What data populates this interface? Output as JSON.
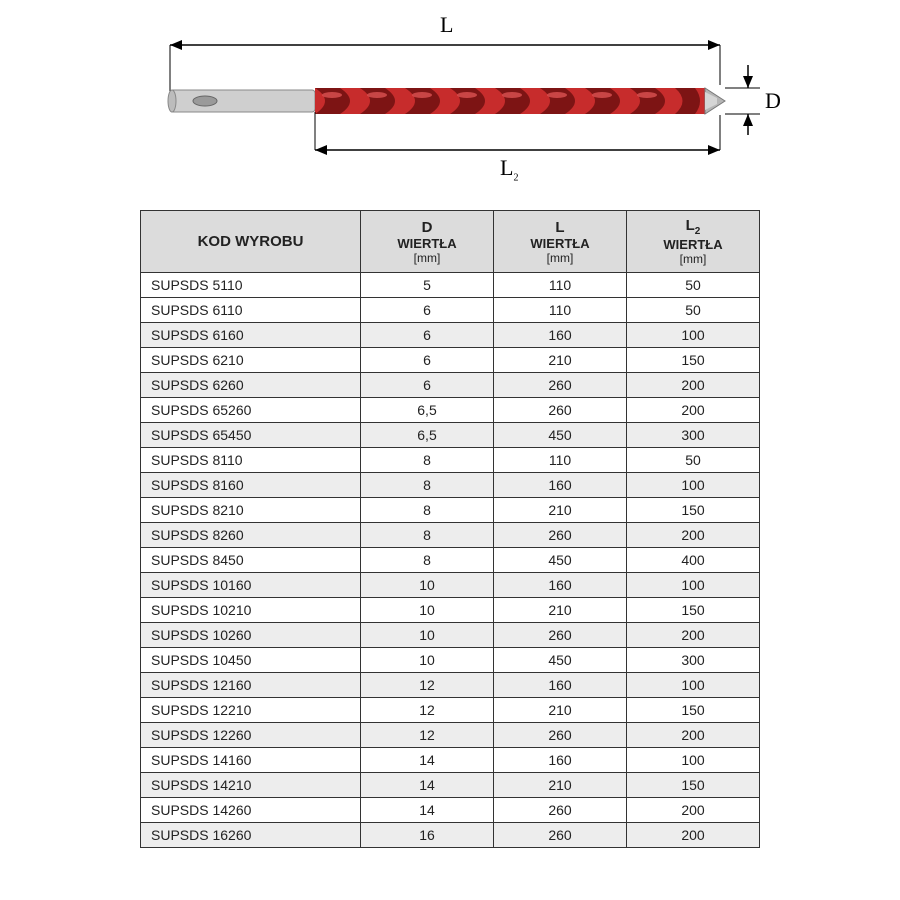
{
  "diagram": {
    "labels": {
      "L": "L",
      "L2": "L",
      "L2_sub": "2",
      "D": "D"
    },
    "colors": {
      "shank_fill": "#cfcfcf",
      "shank_stroke": "#888888",
      "flute_main": "#c72c2c",
      "flute_dark": "#7d1414",
      "flute_highlight": "#e85a5a",
      "tip_fill": "#b5b5b5",
      "dim_line": "#000000"
    }
  },
  "table": {
    "headers": {
      "code": "KOD WYROBU",
      "d_main": "D",
      "d_sub": "WIERTŁA",
      "d_unit": "[mm]",
      "l_main": "L",
      "l_sub": "WIERTŁA",
      "l_unit": "[mm]",
      "l2_main": "L",
      "l2_subnum": "2",
      "l2_sub": "WIERTŁA",
      "l2_unit": "[mm]"
    },
    "rows": [
      {
        "code": "SUPSDS 5110",
        "d": "5",
        "l": "110",
        "l2": "50",
        "shade": false
      },
      {
        "code": "SUPSDS 6110",
        "d": "6",
        "l": "110",
        "l2": "50",
        "shade": false
      },
      {
        "code": "SUPSDS 6160",
        "d": "6",
        "l": "160",
        "l2": "100",
        "shade": true
      },
      {
        "code": "SUPSDS 6210",
        "d": "6",
        "l": "210",
        "l2": "150",
        "shade": false
      },
      {
        "code": "SUPSDS 6260",
        "d": "6",
        "l": "260",
        "l2": "200",
        "shade": true
      },
      {
        "code": "SUPSDS 65260",
        "d": "6,5",
        "l": "260",
        "l2": "200",
        "shade": false
      },
      {
        "code": "SUPSDS 65450",
        "d": "6,5",
        "l": "450",
        "l2": "300",
        "shade": true
      },
      {
        "code": "SUPSDS 8110",
        "d": "8",
        "l": "110",
        "l2": "50",
        "shade": false
      },
      {
        "code": "SUPSDS 8160",
        "d": "8",
        "l": "160",
        "l2": "100",
        "shade": true
      },
      {
        "code": "SUPSDS 8210",
        "d": "8",
        "l": "210",
        "l2": "150",
        "shade": false
      },
      {
        "code": "SUPSDS 8260",
        "d": "8",
        "l": "260",
        "l2": "200",
        "shade": true
      },
      {
        "code": "SUPSDS 8450",
        "d": "8",
        "l": "450",
        "l2": "400",
        "shade": false
      },
      {
        "code": "SUPSDS 10160",
        "d": "10",
        "l": "160",
        "l2": "100",
        "shade": true
      },
      {
        "code": "SUPSDS 10210",
        "d": "10",
        "l": "210",
        "l2": "150",
        "shade": false
      },
      {
        "code": "SUPSDS 10260",
        "d": "10",
        "l": "260",
        "l2": "200",
        "shade": true
      },
      {
        "code": "SUPSDS 10450",
        "d": "10",
        "l": "450",
        "l2": "300",
        "shade": false
      },
      {
        "code": "SUPSDS 12160",
        "d": "12",
        "l": "160",
        "l2": "100",
        "shade": true
      },
      {
        "code": "SUPSDS 12210",
        "d": "12",
        "l": "210",
        "l2": "150",
        "shade": false
      },
      {
        "code": "SUPSDS 12260",
        "d": "12",
        "l": "260",
        "l2": "200",
        "shade": true
      },
      {
        "code": "SUPSDS 14160",
        "d": "14",
        "l": "160",
        "l2": "100",
        "shade": false
      },
      {
        "code": "SUPSDS 14210",
        "d": "14",
        "l": "210",
        "l2": "150",
        "shade": true
      },
      {
        "code": "SUPSDS 14260",
        "d": "14",
        "l": "260",
        "l2": "200",
        "shade": false
      },
      {
        "code": "SUPSDS 16260",
        "d": "16",
        "l": "260",
        "l2": "200",
        "shade": true
      }
    ]
  }
}
